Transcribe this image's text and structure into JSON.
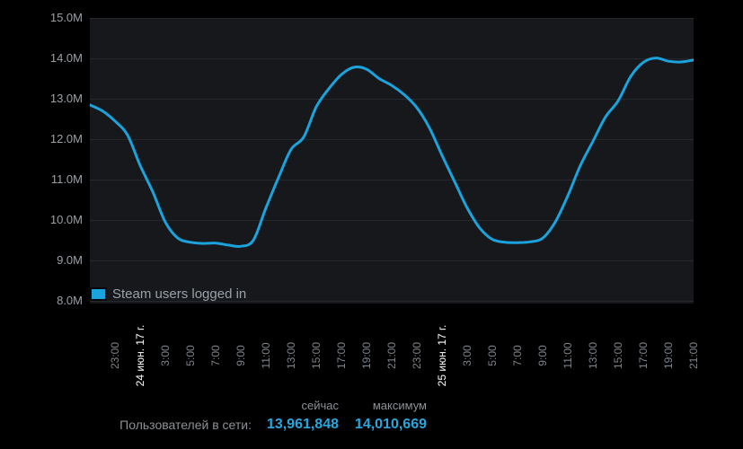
{
  "chart_data": {
    "type": "line",
    "title": "",
    "legend": {
      "label": "Steam users logged in",
      "position": "bottom-left-inside"
    },
    "series": [
      {
        "name": "Steam users logged in",
        "color": "#1aa3dc",
        "values_millions": [
          12.85,
          12.7,
          12.45,
          12.1,
          11.35,
          10.7,
          9.95,
          9.55,
          9.45,
          9.42,
          9.43,
          9.38,
          9.35,
          9.5,
          10.3,
          11.05,
          11.75,
          12.05,
          12.8,
          13.25,
          13.6,
          13.78,
          13.73,
          13.5,
          13.33,
          13.1,
          12.78,
          12.28,
          11.6,
          10.95,
          10.3,
          9.8,
          9.52,
          9.45,
          9.44,
          9.46,
          9.55,
          9.95,
          10.6,
          11.35,
          11.95,
          12.55,
          12.95,
          13.55,
          13.9,
          14.01,
          13.93,
          13.91,
          13.96
        ]
      }
    ],
    "x_hours_span": 48,
    "x_ticks": [
      {
        "label": "23:00",
        "kind": "time"
      },
      {
        "label": "24 июн. 17 г.",
        "kind": "date"
      },
      {
        "label": "3:00",
        "kind": "time"
      },
      {
        "label": "5:00",
        "kind": "time"
      },
      {
        "label": "7:00",
        "kind": "time"
      },
      {
        "label": "9:00",
        "kind": "time"
      },
      {
        "label": "11:00",
        "kind": "time"
      },
      {
        "label": "13:00",
        "kind": "time"
      },
      {
        "label": "15:00",
        "kind": "time"
      },
      {
        "label": "17:00",
        "kind": "time"
      },
      {
        "label": "19:00",
        "kind": "time"
      },
      {
        "label": "21:00",
        "kind": "time"
      },
      {
        "label": "23:00",
        "kind": "time"
      },
      {
        "label": "25 июн. 17 г.",
        "kind": "date"
      },
      {
        "label": "3:00",
        "kind": "time"
      },
      {
        "label": "5:00",
        "kind": "time"
      },
      {
        "label": "7:00",
        "kind": "time"
      },
      {
        "label": "9:00",
        "kind": "time"
      },
      {
        "label": "11:00",
        "kind": "time"
      },
      {
        "label": "13:00",
        "kind": "time"
      },
      {
        "label": "15:00",
        "kind": "time"
      },
      {
        "label": "17:00",
        "kind": "time"
      },
      {
        "label": "19:00",
        "kind": "time"
      },
      {
        "label": "21:00",
        "kind": "time"
      }
    ],
    "y_ticks": [
      "15.0M",
      "14.0M",
      "13.0M",
      "12.0M",
      "11.0M",
      "10.0M",
      "9.0M",
      "8.0M"
    ],
    "ylim_millions": [
      8,
      15
    ],
    "grid": "horizontal-only",
    "colors": {
      "line": "#1aa3dc",
      "plot_background": "#16181b",
      "page_background": "#000000",
      "gridline": "#25282c",
      "axis_text": "#7d848b",
      "date_text": "#ffffff",
      "value_text": "#29a6de"
    }
  },
  "stats": {
    "col_now_header": "сейчас",
    "col_max_header": "максимум",
    "row_label": "Пользователей в сети:",
    "now_value": "13,961,848",
    "max_value": "14,010,669"
  }
}
